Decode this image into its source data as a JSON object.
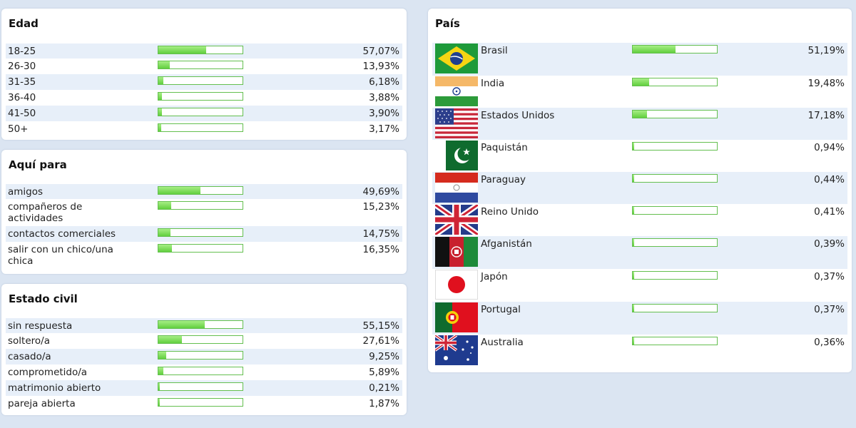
{
  "edad": {
    "title": "Edad",
    "rows": [
      {
        "label": "18-25",
        "pct": "57,07%",
        "value": 57.07
      },
      {
        "label": "26-30",
        "pct": "13,93%",
        "value": 13.93
      },
      {
        "label": "31-35",
        "pct": "6,18%",
        "value": 6.18
      },
      {
        "label": "36-40",
        "pct": "3,88%",
        "value": 3.88
      },
      {
        "label": "41-50",
        "pct": "3,90%",
        "value": 3.9
      },
      {
        "label": "50+",
        "pct": "3,17%",
        "value": 3.17
      }
    ]
  },
  "aqui": {
    "title": "Aquí para",
    "rows": [
      {
        "label": "amigos",
        "pct": "49,69%",
        "value": 49.69
      },
      {
        "label": "compañeros de actividades",
        "pct": "15,23%",
        "value": 15.23
      },
      {
        "label": "contactos comerciales",
        "pct": "14,75%",
        "value": 14.75
      },
      {
        "label": "salir con un chico/una chica",
        "pct": "16,35%",
        "value": 16.35
      }
    ]
  },
  "civil": {
    "title": "Estado civil",
    "rows": [
      {
        "label": "sin respuesta",
        "pct": "55,15%",
        "value": 55.15
      },
      {
        "label": "soltero/a",
        "pct": "27,61%",
        "value": 27.61
      },
      {
        "label": "casado/a",
        "pct": "9,25%",
        "value": 9.25
      },
      {
        "label": "comprometido/a",
        "pct": "5,89%",
        "value": 5.89
      },
      {
        "label": "matrimonio abierto",
        "pct": "0,21%",
        "value": 0.21
      },
      {
        "label": "pareja abierta",
        "pct": "1,87%",
        "value": 1.87
      }
    ]
  },
  "pais": {
    "title": "País",
    "rows": [
      {
        "label": "Brasil",
        "pct": "51,19%",
        "value": 51.19,
        "flag": "brazil-flag-icon"
      },
      {
        "label": "India",
        "pct": "19,48%",
        "value": 19.48,
        "flag": "india-flag-icon"
      },
      {
        "label": "Estados Unidos",
        "pct": "17,18%",
        "value": 17.18,
        "flag": "usa-flag-icon"
      },
      {
        "label": "Paquistán",
        "pct": "0,94%",
        "value": 0.94,
        "flag": "pakistan-flag-icon"
      },
      {
        "label": "Paraguay",
        "pct": "0,44%",
        "value": 0.44,
        "flag": "paraguay-flag-icon"
      },
      {
        "label": "Reino Unido",
        "pct": "0,41%",
        "value": 0.41,
        "flag": "uk-flag-icon"
      },
      {
        "label": "Afganistán",
        "pct": "0,39%",
        "value": 0.39,
        "flag": "afghanistan-flag-icon"
      },
      {
        "label": "Japón",
        "pct": "0,37%",
        "value": 0.37,
        "flag": "japan-flag-icon"
      },
      {
        "label": "Portugal",
        "pct": "0,37%",
        "value": 0.37,
        "flag": "portugal-flag-icon"
      },
      {
        "label": "Australia",
        "pct": "0,36%",
        "value": 0.36,
        "flag": "australia-flag-icon"
      }
    ]
  },
  "colors": {
    "bar_fill": "#62cf3f",
    "bar_border": "#64bf4f",
    "row_alt": "#e7eff9",
    "background": "#dbe5f2"
  }
}
